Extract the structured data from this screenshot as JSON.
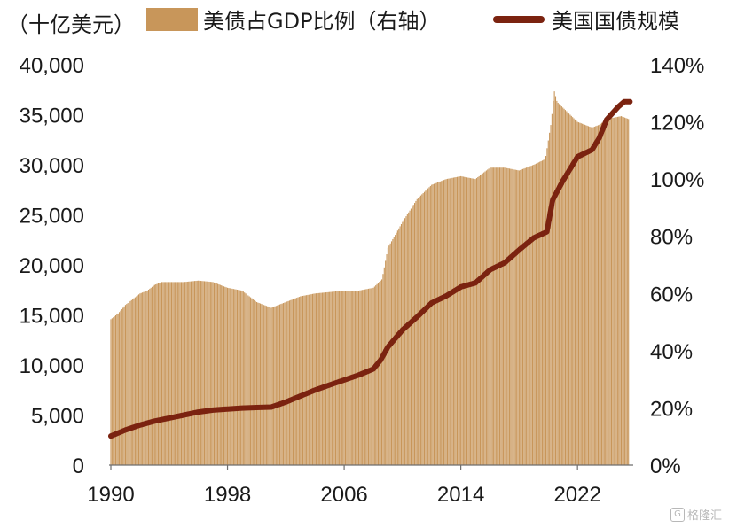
{
  "unit_label": "（十亿美元）",
  "legend": {
    "bar_label": "美债占GDP比例（右轴）",
    "line_label": "美国国债规模"
  },
  "watermark": "格隆汇",
  "colors": {
    "bar": "#c8965a",
    "line": "#7b2310",
    "axis_text": "#1a1a1a"
  },
  "chart_data": {
    "type": "bar",
    "title": "",
    "x_ticks": [
      "1990",
      "1998",
      "2006",
      "2014",
      "2022"
    ],
    "x_range": [
      1990,
      2025.7
    ],
    "left_axis": {
      "ticks": [
        "0",
        "5,000",
        "10,000",
        "15,000",
        "20,000",
        "25,000",
        "30,000",
        "35,000",
        "40,000"
      ],
      "ylim": [
        0,
        40000
      ]
    },
    "right_axis": {
      "ticks": [
        "0%",
        "20%",
        "40%",
        "60%",
        "80%",
        "100%",
        "120%",
        "140%"
      ],
      "ylim": [
        0,
        140
      ]
    },
    "grid": false,
    "legend_position": "top",
    "series": [
      {
        "name": "美债占GDP比例（右轴）",
        "type": "bar",
        "axis": "right",
        "points": [
          [
            1990,
            51
          ],
          [
            1990.5,
            53
          ],
          [
            1991,
            56
          ],
          [
            1991.5,
            58
          ],
          [
            1992,
            60
          ],
          [
            1992.5,
            61
          ],
          [
            1993,
            63
          ],
          [
            1993.5,
            64
          ],
          [
            1994,
            64
          ],
          [
            1995,
            64
          ],
          [
            1996,
            64.5
          ],
          [
            1997,
            64
          ],
          [
            1997.5,
            63
          ],
          [
            1998,
            62
          ],
          [
            1999,
            61
          ],
          [
            2000,
            57
          ],
          [
            2001,
            55
          ],
          [
            2002,
            57
          ],
          [
            2003,
            59
          ],
          [
            2004,
            60
          ],
          [
            2005,
            60.5
          ],
          [
            2006,
            61
          ],
          [
            2007,
            61
          ],
          [
            2008,
            62
          ],
          [
            2008.6,
            65
          ],
          [
            2009,
            76
          ],
          [
            2010,
            85
          ],
          [
            2011,
            93
          ],
          [
            2012,
            98
          ],
          [
            2013,
            100
          ],
          [
            2014,
            101
          ],
          [
            2015,
            100
          ],
          [
            2016,
            104
          ],
          [
            2017,
            104
          ],
          [
            2018,
            103
          ],
          [
            2019,
            105
          ],
          [
            2019.8,
            107
          ],
          [
            2020.2,
            120
          ],
          [
            2020.4,
            131
          ],
          [
            2020.6,
            127
          ],
          [
            2021,
            125
          ],
          [
            2022,
            120
          ],
          [
            2023,
            118
          ],
          [
            2023.5,
            119
          ],
          [
            2024,
            121
          ],
          [
            2025,
            122
          ],
          [
            2025.5,
            121
          ]
        ]
      },
      {
        "name": "美国国债规模",
        "type": "line",
        "axis": "left",
        "points": [
          [
            1990,
            2900
          ],
          [
            1991,
            3500
          ],
          [
            1992,
            4000
          ],
          [
            1993,
            4400
          ],
          [
            1994,
            4700
          ],
          [
            1995,
            5000
          ],
          [
            1996,
            5300
          ],
          [
            1997,
            5500
          ],
          [
            1998,
            5600
          ],
          [
            1999,
            5700
          ],
          [
            2000,
            5750
          ],
          [
            2001,
            5800
          ],
          [
            2002,
            6300
          ],
          [
            2003,
            6900
          ],
          [
            2004,
            7500
          ],
          [
            2005,
            8000
          ],
          [
            2006,
            8500
          ],
          [
            2007,
            9000
          ],
          [
            2008,
            9600
          ],
          [
            2008.5,
            10500
          ],
          [
            2009,
            11800
          ],
          [
            2010,
            13500
          ],
          [
            2011,
            14800
          ],
          [
            2012,
            16200
          ],
          [
            2013,
            16900
          ],
          [
            2014,
            17800
          ],
          [
            2015,
            18200
          ],
          [
            2016,
            19500
          ],
          [
            2017,
            20200
          ],
          [
            2018,
            21500
          ],
          [
            2019,
            22700
          ],
          [
            2019.9,
            23300
          ],
          [
            2020.3,
            26500
          ],
          [
            2021,
            28400
          ],
          [
            2022,
            30800
          ],
          [
            2023,
            31500
          ],
          [
            2023.5,
            32700
          ],
          [
            2024,
            34500
          ],
          [
            2024.8,
            35800
          ],
          [
            2025.2,
            36300
          ],
          [
            2025.6,
            36300
          ]
        ]
      }
    ]
  }
}
